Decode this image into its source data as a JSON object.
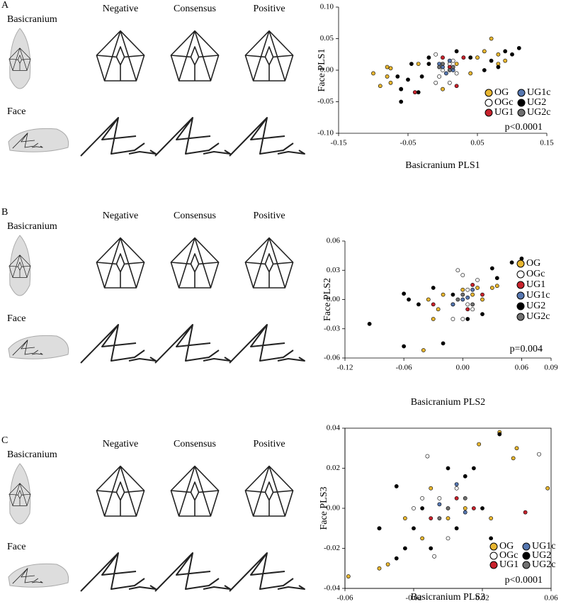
{
  "panels": [
    {
      "label": "A",
      "rows": [
        "Basicranium",
        "Face"
      ],
      "columns": [
        "Negative",
        "Consensus",
        "Positive"
      ]
    },
    {
      "label": "B",
      "rows": [
        "Basicranium",
        "Face"
      ],
      "columns": [
        "Negative",
        "Consensus",
        "Positive"
      ]
    },
    {
      "label": "C",
      "rows": [
        "Basicranium",
        "Face"
      ],
      "columns": [
        "Negative",
        "Consensus",
        "Positive"
      ]
    }
  ],
  "chart_data": [
    {
      "type": "scatter",
      "x_label": "Basicranium PLS1",
      "y_label": "Face PLS1",
      "annotation": "p<0.0001",
      "legend_columns": 2,
      "frame": false,
      "xlim": [
        -0.15,
        0.15
      ],
      "xticks": [
        -0.15,
        -0.05,
        0.05,
        0.15
      ],
      "ylim": [
        -0.1,
        0.1
      ],
      "yticks": [
        {
          "value": 0.1,
          "label": "0.10"
        },
        0.05,
        {
          "value": 0,
          "label": "0.00"
        },
        -0.05,
        {
          "value": -0.1,
          "label": "-0.10"
        }
      ],
      "series": [
        {
          "name": "OG",
          "color": "#e8b630",
          "x": [
            -0.1,
            -0.08,
            -0.08,
            -0.09,
            -0.075,
            -0.06,
            -0.035,
            0.02,
            0.05,
            0.07,
            0.08,
            0.09,
            0.06,
            0.04,
            0.0,
            -0.075,
            0.08
          ],
          "values": [
            -0.005,
            0.005,
            -0.01,
            -0.025,
            -0.02,
            -0.03,
            0.01,
            0.01,
            0.02,
            0.05,
            0.01,
            0.015,
            0.03,
            -0.005,
            -0.03,
            0.003,
            0.025
          ]
        },
        {
          "name": "OGc",
          "color": "#ffffff",
          "x": [
            -0.01,
            0.0,
            -0.005,
            0.01,
            0.02,
            0.01,
            -0.01,
            0.015
          ],
          "values": [
            0.025,
            0.0,
            -0.01,
            -0.02,
            -0.005,
            0.01,
            -0.02,
            0.015
          ]
        },
        {
          "name": "UG1",
          "color": "#c8222c",
          "x": [
            -0.04,
            0.0,
            0.03,
            0.01,
            0.02
          ],
          "values": [
            -0.035,
            0.02,
            0.02,
            0.005,
            -0.025
          ]
        },
        {
          "name": "UG1c",
          "color": "#5677b0",
          "x": [
            0.0,
            0.01,
            -0.005,
            0.015,
            0.005
          ],
          "values": [
            0.005,
            0.015,
            0.01,
            0.0,
            -0.005
          ]
        },
        {
          "name": "UG2",
          "color": "#000000",
          "x": [
            -0.06,
            -0.06,
            -0.05,
            -0.045,
            -0.03,
            -0.02,
            -0.02,
            -0.035,
            0.04,
            0.06,
            0.07,
            0.09,
            0.1,
            0.11,
            0.08,
            0.02,
            -0.065
          ],
          "values": [
            -0.05,
            -0.03,
            -0.015,
            0.01,
            -0.01,
            0.01,
            0.02,
            -0.035,
            0.02,
            0.0,
            0.015,
            0.03,
            0.025,
            0.035,
            0.005,
            0.03,
            -0.01
          ]
        },
        {
          "name": "UG2c",
          "color": "#707070",
          "x": [
            0.0,
            0.01,
            -0.005,
            0.015
          ],
          "values": [
            0.01,
            0.0,
            0.005,
            0.005
          ]
        }
      ]
    },
    {
      "type": "scatter",
      "x_label": "Basicranium PLS2",
      "y_label": "Face PLS2",
      "annotation": "p=0.004",
      "legend_columns": 1,
      "frame": false,
      "xlim": [
        -0.12,
        0.09
      ],
      "xticks": [
        -0.12,
        -0.06,
        {
          "value": 0,
          "label": "0.00"
        },
        0.06,
        0.09
      ],
      "ylim": [
        -0.06,
        0.06
      ],
      "yticks": [
        0.06,
        0.03,
        {
          "value": 0,
          "label": "0.00"
        },
        -0.03,
        -0.06
      ],
      "series": [
        {
          "name": "OG",
          "color": "#e8b630",
          "x": [
            -0.04,
            -0.03,
            -0.02,
            -0.01,
            0.0,
            0.01,
            0.02,
            0.03,
            0.035,
            -0.025,
            0.015,
            -0.035
          ],
          "values": [
            -0.052,
            -0.02,
            0.005,
            -0.005,
            0.01,
            0.005,
            0.0,
            0.012,
            0.014,
            -0.01,
            0.012,
            0.0
          ]
        },
        {
          "name": "OGc",
          "color": "#ffffff",
          "x": [
            -0.005,
            0.0,
            0.005,
            0.01,
            -0.01,
            0.015,
            0.0,
            0.005
          ],
          "values": [
            0.03,
            0.025,
            -0.005,
            -0.01,
            -0.02,
            0.02,
            -0.02,
            0.01
          ]
        },
        {
          "name": "UG1",
          "color": "#c8222c",
          "x": [
            -0.03,
            0.005,
            0.02,
            0.01
          ],
          "values": [
            -0.005,
            -0.01,
            0.005,
            0.015
          ]
        },
        {
          "name": "UG1c",
          "color": "#5677b0",
          "x": [
            0.0,
            -0.01,
            0.01,
            0.005
          ],
          "values": [
            0.0,
            -0.005,
            0.01,
            0.002
          ]
        },
        {
          "name": "UG2",
          "color": "#000000",
          "x": [
            -0.095,
            -0.06,
            -0.055,
            -0.045,
            -0.03,
            -0.02,
            -0.01,
            0.005,
            0.02,
            0.03,
            0.035,
            0.05,
            0.06,
            -0.06
          ],
          "values": [
            -0.025,
            -0.048,
            0.0,
            -0.005,
            0.012,
            -0.045,
            0.005,
            -0.02,
            -0.015,
            0.032,
            0.022,
            0.038,
            0.042,
            0.006
          ]
        },
        {
          "name": "UG2c",
          "color": "#707070",
          "x": [
            0.0,
            0.01,
            -0.005
          ],
          "values": [
            0.005,
            -0.005,
            0.0
          ]
        }
      ]
    },
    {
      "type": "scatter",
      "x_label": "Basicranium PLS3",
      "y_label": "Face PLS3",
      "annotation": "p<0.0001",
      "legend_columns": 2,
      "frame": true,
      "xlim": [
        -0.06,
        0.06
      ],
      "xticks": [
        -0.06,
        -0.02,
        0.02,
        0.06
      ],
      "ylim": [
        -0.04,
        0.04
      ],
      "yticks": [
        0.04,
        0.02,
        {
          "value": 0,
          "label": "0.00"
        },
        -0.02,
        -0.04
      ],
      "series": [
        {
          "name": "OG",
          "color": "#e8b630",
          "x": [
            -0.058,
            -0.04,
            -0.035,
            -0.025,
            -0.01,
            0.0,
            0.01,
            0.018,
            0.03,
            0.038,
            0.04,
            0.058,
            0.025,
            -0.015
          ],
          "values": [
            -0.034,
            -0.03,
            -0.028,
            -0.005,
            0.01,
            -0.005,
            0.0,
            0.032,
            0.038,
            0.025,
            0.03,
            0.01,
            -0.005,
            -0.015
          ]
        },
        {
          "name": "OGc",
          "color": "#ffffff",
          "x": [
            -0.02,
            -0.012,
            -0.005,
            0.0,
            0.005,
            -0.008,
            0.053,
            -0.015
          ],
          "values": [
            0.0,
            0.026,
            0.005,
            -0.015,
            0.01,
            -0.024,
            0.027,
            0.005
          ]
        },
        {
          "name": "UG1",
          "color": "#c8222c",
          "x": [
            -0.04,
            -0.01,
            0.005,
            0.045,
            0.015
          ],
          "values": [
            -0.01,
            -0.005,
            0.005,
            -0.002,
            0.0
          ]
        },
        {
          "name": "UG1c",
          "color": "#5677b0",
          "x": [
            -0.005,
            0.005,
            0.01
          ],
          "values": [
            0.002,
            0.012,
            -0.002
          ]
        },
        {
          "name": "UG2",
          "color": "#000000",
          "x": [
            -0.04,
            -0.03,
            -0.025,
            -0.02,
            -0.01,
            0.0,
            0.005,
            0.01,
            0.02,
            0.03,
            0.025,
            -0.015,
            0.015,
            -0.03
          ],
          "values": [
            -0.01,
            0.011,
            -0.02,
            -0.01,
            -0.02,
            0.02,
            -0.01,
            0.016,
            0.0,
            0.037,
            -0.015,
            0.0,
            0.02,
            -0.025
          ]
        },
        {
          "name": "UG2c",
          "color": "#707070",
          "x": [
            0.0,
            0.01,
            -0.005
          ],
          "values": [
            0.0,
            0.005,
            -0.005
          ]
        }
      ]
    }
  ]
}
